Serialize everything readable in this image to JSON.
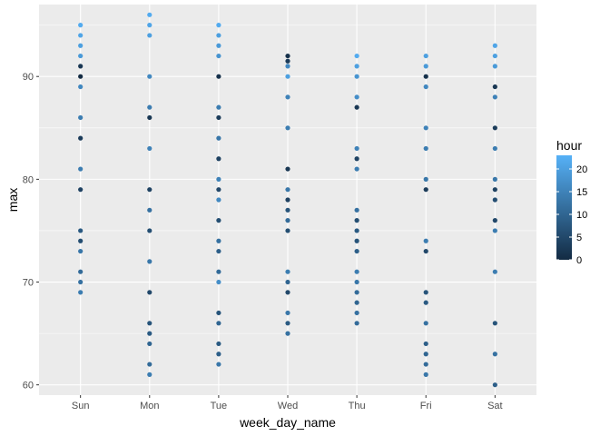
{
  "chart_data": {
    "type": "scatter",
    "title": "",
    "xlabel": "week_day_name",
    "ylabel": "max",
    "categories": [
      "Sun",
      "Mon",
      "Tue",
      "Wed",
      "Thu",
      "Fri",
      "Sat"
    ],
    "y_ticks": [
      60,
      70,
      80,
      90
    ],
    "ylim": [
      59,
      97
    ],
    "grid": true,
    "legend": {
      "title": "hour",
      "placement": "right",
      "ticks": [
        0,
        5,
        10,
        15,
        20
      ],
      "range": [
        0,
        23
      ],
      "color_low": "#132B43",
      "color_high": "#56B1F7"
    },
    "points": [
      {
        "x": "Sun",
        "y": 95,
        "hour": 22
      },
      {
        "x": "Sun",
        "y": 94,
        "hour": 21
      },
      {
        "x": "Sun",
        "y": 93,
        "hour": 20
      },
      {
        "x": "Sun",
        "y": 92,
        "hour": 19
      },
      {
        "x": "Sun",
        "y": 91,
        "hour": 2
      },
      {
        "x": "Sun",
        "y": 90,
        "hour": 0
      },
      {
        "x": "Sun",
        "y": 89,
        "hour": 16
      },
      {
        "x": "Sun",
        "y": 86,
        "hour": 14
      },
      {
        "x": "Sun",
        "y": 84,
        "hour": 3
      },
      {
        "x": "Sun",
        "y": 81,
        "hour": 14
      },
      {
        "x": "Sun",
        "y": 79,
        "hour": 4
      },
      {
        "x": "Sun",
        "y": 75,
        "hour": 8
      },
      {
        "x": "Sun",
        "y": 74,
        "hour": 6
      },
      {
        "x": "Sun",
        "y": 73,
        "hour": 13
      },
      {
        "x": "Sun",
        "y": 71,
        "hour": 11
      },
      {
        "x": "Sun",
        "y": 70,
        "hour": 12
      },
      {
        "x": "Sun",
        "y": 69,
        "hour": 14
      },
      {
        "x": "Mon",
        "y": 96,
        "hour": 22
      },
      {
        "x": "Mon",
        "y": 95,
        "hour": 21
      },
      {
        "x": "Mon",
        "y": 94,
        "hour": 20
      },
      {
        "x": "Mon",
        "y": 90,
        "hour": 16
      },
      {
        "x": "Mon",
        "y": 87,
        "hour": 14
      },
      {
        "x": "Mon",
        "y": 86,
        "hour": 2
      },
      {
        "x": "Mon",
        "y": 83,
        "hour": 15
      },
      {
        "x": "Mon",
        "y": 79,
        "hour": 4
      },
      {
        "x": "Mon",
        "y": 77,
        "hour": 12
      },
      {
        "x": "Mon",
        "y": 75,
        "hour": 6
      },
      {
        "x": "Mon",
        "y": 72,
        "hour": 13
      },
      {
        "x": "Mon",
        "y": 69,
        "hour": 5
      },
      {
        "x": "Mon",
        "y": 66,
        "hour": 7
      },
      {
        "x": "Mon",
        "y": 65,
        "hour": 8
      },
      {
        "x": "Mon",
        "y": 64,
        "hour": 10
      },
      {
        "x": "Mon",
        "y": 62,
        "hour": 11
      },
      {
        "x": "Mon",
        "y": 61,
        "hour": 14
      },
      {
        "x": "Tue",
        "y": 95,
        "hour": 22
      },
      {
        "x": "Tue",
        "y": 94,
        "hour": 20
      },
      {
        "x": "Tue",
        "y": 93,
        "hour": 19
      },
      {
        "x": "Tue",
        "y": 92,
        "hour": 18
      },
      {
        "x": "Tue",
        "y": 90,
        "hour": 1
      },
      {
        "x": "Tue",
        "y": 87,
        "hour": 14
      },
      {
        "x": "Tue",
        "y": 86,
        "hour": 3
      },
      {
        "x": "Tue",
        "y": 84,
        "hour": 13
      },
      {
        "x": "Tue",
        "y": 82,
        "hour": 4
      },
      {
        "x": "Tue",
        "y": 80,
        "hour": 15
      },
      {
        "x": "Tue",
        "y": 79,
        "hour": 5
      },
      {
        "x": "Tue",
        "y": 78,
        "hour": 16
      },
      {
        "x": "Tue",
        "y": 76,
        "hour": 6
      },
      {
        "x": "Tue",
        "y": 74,
        "hour": 12
      },
      {
        "x": "Tue",
        "y": 73,
        "hour": 9
      },
      {
        "x": "Tue",
        "y": 71,
        "hour": 11
      },
      {
        "x": "Tue",
        "y": 70,
        "hour": 17
      },
      {
        "x": "Tue",
        "y": 67,
        "hour": 7
      },
      {
        "x": "Tue",
        "y": 66,
        "hour": 10
      },
      {
        "x": "Tue",
        "y": 64,
        "hour": 8
      },
      {
        "x": "Tue",
        "y": 63,
        "hour": 9
      },
      {
        "x": "Tue",
        "y": 62,
        "hour": 13
      },
      {
        "x": "Wed",
        "y": 92,
        "hour": 1
      },
      {
        "x": "Wed",
        "y": 91.5,
        "hour": 3
      },
      {
        "x": "Wed",
        "y": 91,
        "hour": 16
      },
      {
        "x": "Wed",
        "y": 90,
        "hour": 20
      },
      {
        "x": "Wed",
        "y": 88,
        "hour": 15
      },
      {
        "x": "Wed",
        "y": 85,
        "hour": 14
      },
      {
        "x": "Wed",
        "y": 81,
        "hour": 2
      },
      {
        "x": "Wed",
        "y": 79,
        "hour": 13
      },
      {
        "x": "Wed",
        "y": 78,
        "hour": 4
      },
      {
        "x": "Wed",
        "y": 77,
        "hour": 7
      },
      {
        "x": "Wed",
        "y": 76,
        "hour": 11
      },
      {
        "x": "Wed",
        "y": 75,
        "hour": 6
      },
      {
        "x": "Wed",
        "y": 71,
        "hour": 14
      },
      {
        "x": "Wed",
        "y": 70,
        "hour": 10
      },
      {
        "x": "Wed",
        "y": 69,
        "hour": 5
      },
      {
        "x": "Wed",
        "y": 67,
        "hour": 13
      },
      {
        "x": "Wed",
        "y": 66,
        "hour": 8
      },
      {
        "x": "Wed",
        "y": 65,
        "hour": 12
      },
      {
        "x": "Thu",
        "y": 92,
        "hour": 22
      },
      {
        "x": "Thu",
        "y": 91,
        "hour": 20
      },
      {
        "x": "Thu",
        "y": 90,
        "hour": 18
      },
      {
        "x": "Thu",
        "y": 88,
        "hour": 17
      },
      {
        "x": "Thu",
        "y": 87,
        "hour": 2
      },
      {
        "x": "Thu",
        "y": 83,
        "hour": 15
      },
      {
        "x": "Thu",
        "y": 82,
        "hour": 4
      },
      {
        "x": "Thu",
        "y": 81,
        "hour": 14
      },
      {
        "x": "Thu",
        "y": 77,
        "hour": 12
      },
      {
        "x": "Thu",
        "y": 76,
        "hour": 6
      },
      {
        "x": "Thu",
        "y": 75,
        "hour": 8
      },
      {
        "x": "Thu",
        "y": 74,
        "hour": 7
      },
      {
        "x": "Thu",
        "y": 73,
        "hour": 9
      },
      {
        "x": "Thu",
        "y": 71,
        "hour": 14
      },
      {
        "x": "Thu",
        "y": 70,
        "hour": 13
      },
      {
        "x": "Thu",
        "y": 69,
        "hour": 11
      },
      {
        "x": "Thu",
        "y": 68,
        "hour": 10
      },
      {
        "x": "Thu",
        "y": 67,
        "hour": 12
      },
      {
        "x": "Thu",
        "y": 66,
        "hour": 11
      },
      {
        "x": "Fri",
        "y": 92,
        "hour": 20
      },
      {
        "x": "Fri",
        "y": 91,
        "hour": 19
      },
      {
        "x": "Fri",
        "y": 90,
        "hour": 1
      },
      {
        "x": "Fri",
        "y": 89,
        "hour": 16
      },
      {
        "x": "Fri",
        "y": 85,
        "hour": 15
      },
      {
        "x": "Fri",
        "y": 83,
        "hour": 14
      },
      {
        "x": "Fri",
        "y": 80,
        "hour": 13
      },
      {
        "x": "Fri",
        "y": 79,
        "hour": 3
      },
      {
        "x": "Fri",
        "y": 74,
        "hour": 14
      },
      {
        "x": "Fri",
        "y": 73,
        "hour": 5
      },
      {
        "x": "Fri",
        "y": 69,
        "hour": 7
      },
      {
        "x": "Fri",
        "y": 68,
        "hour": 8
      },
      {
        "x": "Fri",
        "y": 66,
        "hour": 12
      },
      {
        "x": "Fri",
        "y": 64,
        "hour": 9
      },
      {
        "x": "Fri",
        "y": 63,
        "hour": 10
      },
      {
        "x": "Fri",
        "y": 62,
        "hour": 11
      },
      {
        "x": "Fri",
        "y": 61,
        "hour": 13
      },
      {
        "x": "Sat",
        "y": 93,
        "hour": 21
      },
      {
        "x": "Sat",
        "y": 92,
        "hour": 20
      },
      {
        "x": "Sat",
        "y": 91,
        "hour": 19
      },
      {
        "x": "Sat",
        "y": 89,
        "hour": 2
      },
      {
        "x": "Sat",
        "y": 88,
        "hour": 15
      },
      {
        "x": "Sat",
        "y": 85,
        "hour": 3
      },
      {
        "x": "Sat",
        "y": 83,
        "hour": 14
      },
      {
        "x": "Sat",
        "y": 80,
        "hour": 13
      },
      {
        "x": "Sat",
        "y": 79,
        "hour": 4
      },
      {
        "x": "Sat",
        "y": 78,
        "hour": 6
      },
      {
        "x": "Sat",
        "y": 76,
        "hour": 5
      },
      {
        "x": "Sat",
        "y": 75,
        "hour": 14
      },
      {
        "x": "Sat",
        "y": 71,
        "hour": 14
      },
      {
        "x": "Sat",
        "y": 66,
        "hour": 7
      },
      {
        "x": "Sat",
        "y": 63,
        "hour": 12
      },
      {
        "x": "Sat",
        "y": 60,
        "hour": 9
      }
    ]
  }
}
